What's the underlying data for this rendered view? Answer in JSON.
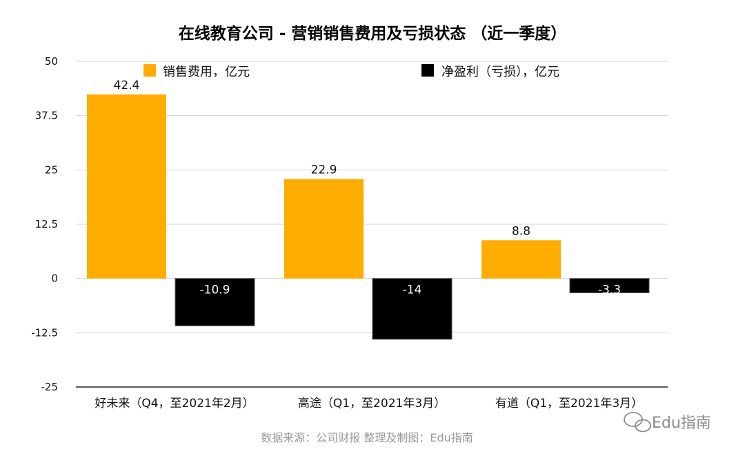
{
  "chart_data": {
    "type": "bar",
    "title": "在线教育公司 - 营销销售费用及亏损状态 （近一季度）",
    "categories": [
      "好未来（Q4，至2021年2月）",
      "高途（Q1，至2021年3月）",
      "有道（Q1，至2021年3月）"
    ],
    "series": [
      {
        "name": "销售费用，亿元",
        "values": [
          42.4,
          22.9,
          8.8
        ],
        "color": "#FFAC00"
      },
      {
        "name": "净盈利（亏损），亿元",
        "values": [
          -10.9,
          -14,
          -3.3
        ],
        "color": "#000000"
      }
    ],
    "data_labels": [
      [
        "42.4",
        "22.9",
        "8.8"
      ],
      [
        "-10.9",
        "-14",
        "-3.3"
      ]
    ],
    "ylim": [
      -25,
      50
    ],
    "yticks": [
      50,
      37.5,
      25,
      12.5,
      0,
      -12.5,
      -25
    ],
    "ytick_labels": [
      "50",
      "37.5",
      "25",
      "12.5",
      "0",
      "-12.5",
      "-25"
    ],
    "grid": true,
    "legend_position": "top",
    "xlabel": "",
    "ylabel": ""
  },
  "footer": {
    "source": "数据来源：公司财报    整理及制图：Edu指南",
    "watermark": "Edu指南"
  }
}
